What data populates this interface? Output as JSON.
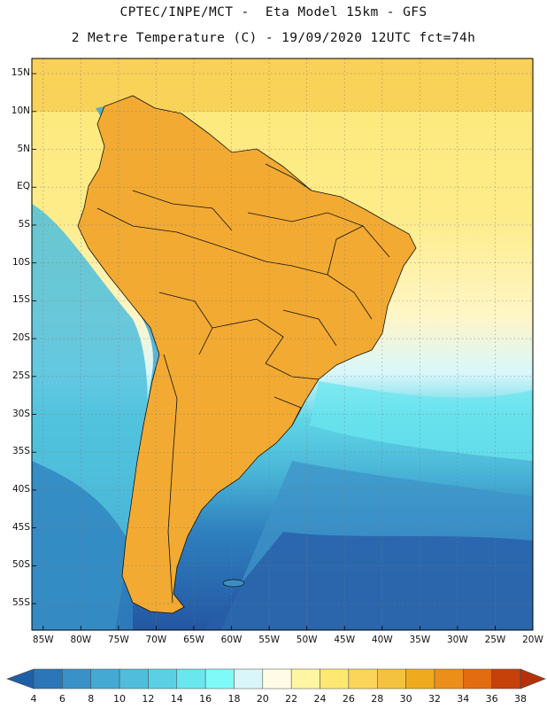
{
  "titles": {
    "line1": "CPTEC/INPE/MCT -  Eta Model 15km - GFS",
    "line2": "2 Metre Temperature (C) - 19/09/2020 12UTC fct=74h"
  },
  "map": {
    "lat_labels": [
      "15N",
      "10N",
      "5N",
      "EQ",
      "5S",
      "10S",
      "15S",
      "20S",
      "25S",
      "30S",
      "35S",
      "40S",
      "45S",
      "50S",
      "55S"
    ],
    "lon_labels": [
      "85W",
      "80W",
      "75W",
      "70W",
      "65W",
      "60W",
      "55W",
      "50W",
      "45W",
      "40W",
      "35W",
      "30W",
      "25W",
      "20W"
    ],
    "extent": {
      "lon_min": -86.5,
      "lon_max": -20,
      "lat_min": -58.5,
      "lat_max": 17
    }
  },
  "colorbar": {
    "values": [
      "4",
      "6",
      "8",
      "10",
      "12",
      "14",
      "16",
      "18",
      "20",
      "22",
      "24",
      "26",
      "28",
      "30",
      "32",
      "34",
      "36",
      "38"
    ],
    "colors": [
      "#1f5fa6",
      "#2a76b6",
      "#3a91c7",
      "#44a9d3",
      "#50bddc",
      "#5bd0e5",
      "#6ae6ef",
      "#7ffaf8",
      "#d9f7fb",
      "#fffbe6",
      "#fff5a2",
      "#ffe872",
      "#fbd559",
      "#f5c240",
      "#efaa1e",
      "#eb8f1a",
      "#e36b10",
      "#c6400a",
      "#b4320a"
    ]
  },
  "background": {
    "ocean_deep": "#2a5ea6",
    "ocean_mid": "#3b90c6",
    "ocean_cool": "#5bd0e5",
    "ocean_tropical": "#fde877",
    "land_hot": "#f0a22a",
    "land_warm": "#fbd559",
    "andes": "#5fc7df"
  }
}
